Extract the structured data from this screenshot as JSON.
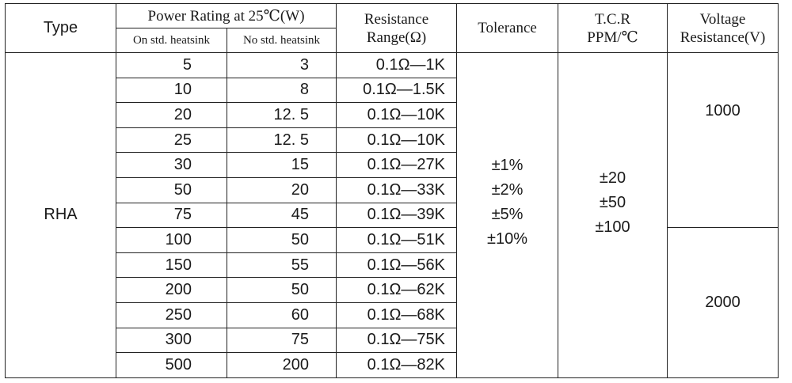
{
  "header": {
    "type": "Type",
    "power_rating": "Power Rating at 25℃(W)",
    "on_heatsink": "On std. heatsink",
    "no_heatsink": "No std. heatsink",
    "resistance_line1": "Resistance",
    "resistance_line2": "Range(Ω)",
    "tolerance": "Tolerance",
    "tcr_line1": "T.C.R",
    "tcr_line2": "PPM/℃",
    "voltage_line1": "Voltage",
    "voltage_line2": "Resistance(V)"
  },
  "type_value": "RHA",
  "rows": [
    {
      "on": "5",
      "no": "3",
      "range": "0.1Ω—1K"
    },
    {
      "on": "10",
      "no": "8",
      "range": "0.1Ω—1.5K"
    },
    {
      "on": "20",
      "no": "12. 5",
      "range": "0.1Ω—10K"
    },
    {
      "on": "25",
      "no": "12. 5",
      "range": "0.1Ω—10K"
    },
    {
      "on": "30",
      "no": "15",
      "range": "0.1Ω—27K"
    },
    {
      "on": "50",
      "no": "20",
      "range": "0.1Ω—33K"
    },
    {
      "on": "75",
      "no": "45",
      "range": "0.1Ω—39K"
    },
    {
      "on": "100",
      "no": "50",
      "range": "0.1Ω—51K"
    },
    {
      "on": "150",
      "no": "55",
      "range": "0.1Ω—56K"
    },
    {
      "on": "200",
      "no": "50",
      "range": "0.1Ω—62K"
    },
    {
      "on": "250",
      "no": "60",
      "range": "0.1Ω—68K"
    },
    {
      "on": "300",
      "no": "75",
      "range": "0.1Ω—75K"
    },
    {
      "on": "500",
      "no": "200",
      "range": "0.1Ω—82K"
    }
  ],
  "tolerance_values": [
    "±1%",
    "±2%",
    "±5%",
    "±10%"
  ],
  "tcr_values": [
    "±20",
    "±50",
    "±100"
  ],
  "voltage_values": [
    "1000",
    "2000"
  ]
}
